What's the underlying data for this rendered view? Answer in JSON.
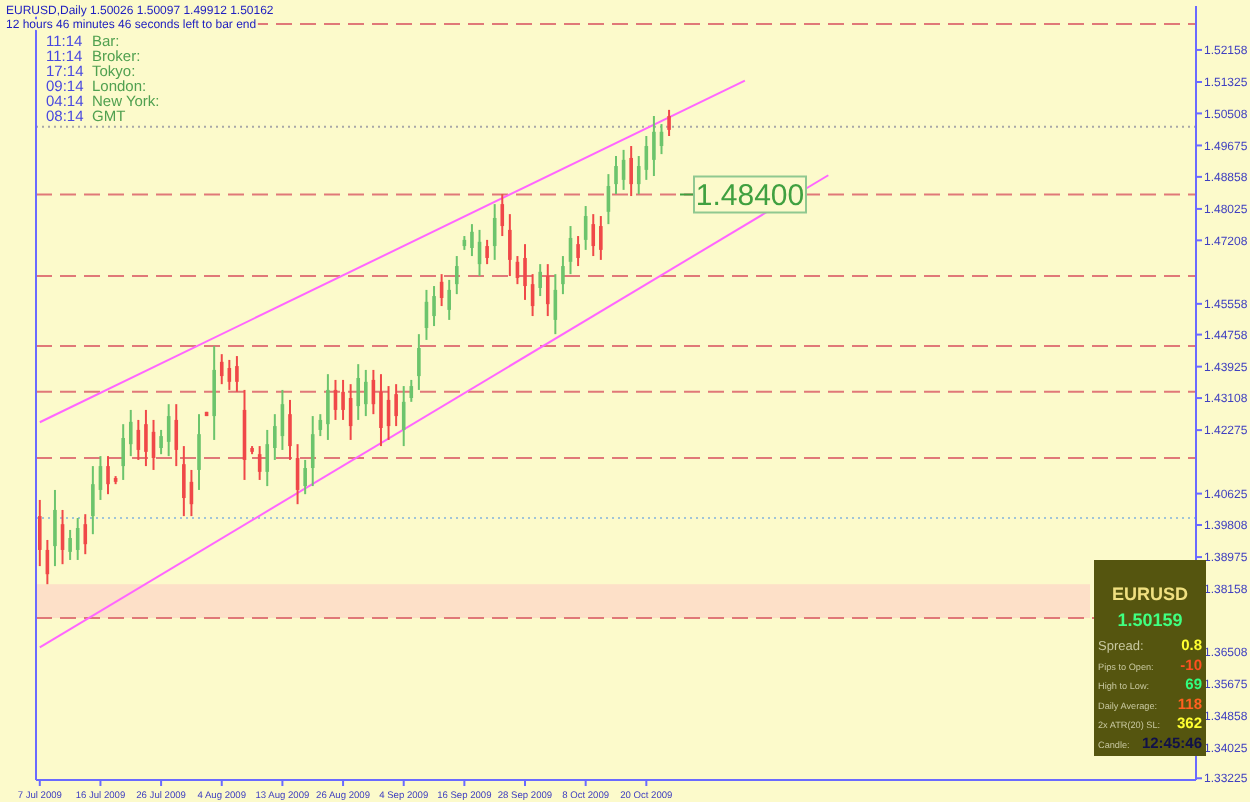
{
  "chart_data": {
    "type": "candlestick",
    "title": "EURUSD,Daily  1.50026 1.50097 1.49912 1.50162",
    "subtitle": "12 hours 46 minutes 46 seconds left to bar end",
    "categories": [
      "7 Jul 2009",
      null,
      null,
      null,
      null,
      null,
      null,
      null,
      "16 Jul 2009",
      null,
      null,
      null,
      null,
      null,
      null,
      null,
      "26 Jul 2009",
      null,
      null,
      null,
      null,
      null,
      null,
      null,
      "4 Aug 2009",
      null,
      null,
      null,
      null,
      null,
      null,
      null,
      "13 Aug 2009",
      null,
      null,
      null,
      null,
      null,
      null,
      null,
      "26 Aug 2009",
      null,
      null,
      null,
      null,
      null,
      null,
      null,
      "4 Sep 2009",
      null,
      null,
      null,
      null,
      null,
      null,
      null,
      "16 Sep 2009",
      null,
      null,
      null,
      null,
      null,
      null,
      null,
      "28 Sep 2009",
      null,
      null,
      null,
      null,
      null,
      null,
      null,
      "8 Oct 2009",
      null,
      null,
      null,
      null,
      null,
      null,
      null,
      "20 Oct 2009",
      null,
      null,
      null,
      null,
      null,
      null,
      null,
      null,
      null,
      null,
      null,
      null,
      null,
      null,
      null,
      null,
      null,
      null,
      null,
      null,
      null,
      null,
      null,
      null,
      null,
      null,
      null,
      null,
      null,
      null,
      null,
      null,
      null,
      null,
      null,
      null,
      null,
      null,
      null,
      null,
      null,
      null,
      null,
      null,
      null,
      null,
      null,
      null,
      null,
      null,
      null,
      null,
      null,
      null,
      null,
      null,
      null,
      null,
      null,
      null,
      null,
      null,
      null,
      null,
      null,
      null,
      null,
      null,
      null,
      null,
      null,
      null
    ],
    "ohlc": [
      [
        1.4004,
        1.4046,
        1.3874,
        1.3916
      ],
      [
        1.3916,
        1.3942,
        1.3827,
        1.3853
      ],
      [
        1.3926,
        1.4072,
        1.3874,
        1.402
      ],
      [
        1.3983,
        1.402,
        1.3879,
        1.3916
      ],
      [
        1.3911,
        1.3968,
        1.389,
        1.3947
      ],
      [
        1.3916,
        1.3999,
        1.389,
        1.3973
      ],
      [
        1.3983,
        1.4009,
        1.3905,
        1.3931
      ],
      [
        1.4004,
        1.4134,
        1.3957,
        1.4087
      ],
      [
        1.4072,
        1.416,
        1.4046,
        1.4134
      ],
      [
        1.4134,
        1.416,
        1.4061,
        1.4087
      ],
      [
        1.4103,
        1.4108,
        1.4087,
        1.4093
      ],
      [
        1.4134,
        1.4243,
        1.4098,
        1.4207
      ],
      [
        1.4191,
        1.428,
        1.416,
        1.4249
      ],
      [
        1.4228,
        1.4254,
        1.415,
        1.4176
      ],
      [
        1.4243,
        1.428,
        1.4134,
        1.4171
      ],
      [
        1.4223,
        1.4254,
        1.4124,
        1.4155
      ],
      [
        1.4181,
        1.4228,
        1.4165,
        1.4212
      ],
      [
        1.4197,
        1.4295,
        1.416,
        1.4264
      ],
      [
        1.4254,
        1.4295,
        1.4134,
        1.4176
      ],
      [
        1.4139,
        1.4186,
        1.4004,
        1.4051
      ],
      [
        1.4093,
        1.4124,
        1.4004,
        1.4035
      ],
      [
        1.4124,
        1.4269,
        1.4072,
        1.4217
      ],
      [
        1.4275,
        1.4275,
        1.4264,
        1.4264
      ],
      [
        1.4264,
        1.4446,
        1.4202,
        1.4384
      ],
      [
        1.4405,
        1.4425,
        1.4347,
        1.4368
      ],
      [
        1.4389,
        1.441,
        1.4332,
        1.4353
      ],
      [
        1.4394,
        1.442,
        1.4327,
        1.4353
      ],
      [
        1.428,
        1.4332,
        1.4098,
        1.415
      ],
      [
        1.4181,
        1.4186,
        1.4165,
        1.4171
      ],
      [
        1.4165,
        1.4186,
        1.4098,
        1.4119
      ],
      [
        1.4119,
        1.4228,
        1.4082,
        1.4191
      ],
      [
        1.4181,
        1.4269,
        1.415,
        1.4238
      ],
      [
        1.4212,
        1.4332,
        1.4176,
        1.4295
      ],
      [
        1.4269,
        1.4306,
        1.415,
        1.4186
      ],
      [
        1.4155,
        1.4191,
        1.4035,
        1.4072
      ],
      [
        1.4082,
        1.415,
        1.4061,
        1.4129
      ],
      [
        1.4129,
        1.4264,
        1.4082,
        1.4217
      ],
      [
        1.4228,
        1.4269,
        1.4212,
        1.4254
      ],
      [
        1.4243,
        1.4373,
        1.4202,
        1.4332
      ],
      [
        1.4332,
        1.4358,
        1.4254,
        1.428
      ],
      [
        1.4327,
        1.4358,
        1.4254,
        1.428
      ],
      [
        1.4311,
        1.4347,
        1.4202,
        1.4238
      ],
      [
        1.429,
        1.4399,
        1.4254,
        1.4363
      ],
      [
        1.4295,
        1.4384,
        1.4264,
        1.4353
      ],
      [
        1.4358,
        1.4384,
        1.4269,
        1.4295
      ],
      [
        1.4327,
        1.4373,
        1.4186,
        1.4233
      ],
      [
        1.4306,
        1.4342,
        1.4202,
        1.4238
      ],
      [
        1.4321,
        1.4347,
        1.4238,
        1.4264
      ],
      [
        1.4228,
        1.4342,
        1.4186,
        1.4301
      ],
      [
        1.4311,
        1.4358,
        1.4301,
        1.4342
      ],
      [
        1.4368,
        1.4477,
        1.4332,
        1.4441
      ],
      [
        1.4493,
        1.4592,
        1.4462,
        1.4561
      ],
      [
        1.4524,
        1.4602,
        1.4498,
        1.4576
      ],
      [
        1.4613,
        1.4633,
        1.455,
        1.4571
      ],
      [
        1.454,
        1.4618,
        1.4514,
        1.4592
      ],
      [
        1.4607,
        1.468,
        1.4581,
        1.4654
      ],
      [
        1.4706,
        1.4732,
        1.4696,
        1.4722
      ],
      [
        1.4701,
        1.4763,
        1.468,
        1.4743
      ],
      [
        1.4659,
        1.4748,
        1.4628,
        1.4717
      ],
      [
        1.4706,
        1.4722,
        1.4659,
        1.4675
      ],
      [
        1.4706,
        1.4815,
        1.467,
        1.4779
      ],
      [
        1.4815,
        1.4841,
        1.4732,
        1.4758
      ],
      [
        1.4748,
        1.4789,
        1.4628,
        1.467
      ],
      [
        1.4665,
        1.468,
        1.4607,
        1.4623
      ],
      [
        1.4675,
        1.4711,
        1.4566,
        1.4602
      ],
      [
        1.4607,
        1.4633,
        1.4524,
        1.455
      ],
      [
        1.4597,
        1.4659,
        1.4576,
        1.4639
      ],
      [
        1.4628,
        1.4659,
        1.4524,
        1.4555
      ],
      [
        1.4514,
        1.4633,
        1.4477,
        1.4592
      ],
      [
        1.4607,
        1.468,
        1.4581,
        1.4654
      ],
      [
        1.4665,
        1.4758,
        1.4633,
        1.4727
      ],
      [
        1.4711,
        1.4732,
        1.4654,
        1.4675
      ],
      [
        1.4722,
        1.481,
        1.4696,
        1.4784
      ],
      [
        1.4763,
        1.4789,
        1.468,
        1.4706
      ],
      [
        1.4758,
        1.4784,
        1.467,
        1.4696
      ],
      [
        1.4795,
        1.4893,
        1.4763,
        1.4862
      ],
      [
        1.4867,
        1.494,
        1.4841,
        1.4914
      ],
      [
        1.4878,
        1.4956,
        1.4852,
        1.493
      ],
      [
        1.4935,
        1.4966,
        1.4836,
        1.4867
      ],
      [
        1.4867,
        1.494,
        1.4841,
        1.4914
      ],
      [
        1.4904,
        1.4992,
        1.4878,
        1.4966
      ],
      [
        1.493,
        1.5044,
        1.4888,
        1.5003
      ],
      [
        1.4966,
        1.5023,
        1.4945,
        1.5003
      ],
      [
        1.5044,
        1.506,
        1.4992,
        1.5008
      ],
      null,
      null,
      null,
      null,
      null,
      null,
      null,
      null,
      null,
      null,
      null,
      null,
      null,
      null,
      null,
      null,
      null,
      null,
      null,
      null,
      null,
      null,
      null,
      null,
      null,
      null,
      null,
      null,
      null,
      null,
      null,
      null,
      null,
      null,
      null,
      null,
      null,
      null,
      null,
      null,
      null,
      null,
      null,
      null,
      null,
      null,
      null,
      null,
      null,
      null,
      null,
      null,
      null,
      null,
      null,
      null,
      null,
      null,
      null,
      null,
      null,
      null,
      null,
      null,
      null,
      null,
      null,
      null,
      null
    ],
    "colors": [
      "#f04848",
      "#f04848",
      "#6cc46c",
      "#f04848",
      "#6cc46c",
      "#6cc46c",
      "#f04848",
      "#6cc46c",
      "#6cc46c",
      "#f04848",
      "#f04848",
      "#6cc46c",
      "#6cc46c",
      "#f04848",
      "#f04848",
      "#f04848",
      "#6cc46c",
      "#6cc46c",
      "#f04848",
      "#f04848",
      "#f04848",
      "#6cc46c",
      "#f04848",
      "#6cc46c",
      "#f04848",
      "#f04848",
      "#f04848",
      "#f04848",
      "#f04848",
      "#f04848",
      "#6cc46c",
      "#6cc46c",
      "#6cc46c",
      "#f04848",
      "#f04848",
      "#6cc46c",
      "#6cc46c",
      "#6cc46c",
      "#6cc46c",
      "#f04848",
      "#f04848",
      "#f04848",
      "#6cc46c",
      "#6cc46c",
      "#f04848",
      "#f04848",
      "#f04848",
      "#f04848",
      "#6cc46c",
      "#6cc46c",
      "#6cc46c",
      "#6cc46c",
      "#6cc46c",
      "#f04848",
      "#6cc46c",
      "#6cc46c",
      "#6cc46c",
      "#6cc46c",
      "#6cc46c",
      "#f04848",
      "#6cc46c",
      "#f04848",
      "#f04848",
      "#f04848",
      "#f04848",
      "#f04848",
      "#6cc46c",
      "#f04848",
      "#6cc46c",
      "#6cc46c",
      "#6cc46c",
      "#f04848",
      "#6cc46c",
      "#f04848",
      "#f04848",
      "#6cc46c",
      "#6cc46c",
      "#6cc46c",
      "#f04848",
      "#6cc46c",
      "#6cc46c",
      "#6cc46c",
      "#6cc46c",
      "#f04848",
      null,
      null,
      null,
      null,
      null,
      null,
      null,
      null,
      null,
      null,
      null,
      null,
      null,
      null,
      null,
      null,
      null,
      null,
      null,
      null,
      null,
      null,
      null,
      null,
      null,
      null,
      null,
      null,
      null,
      null,
      null,
      null,
      null,
      null,
      null,
      null,
      null,
      null,
      null,
      null,
      null,
      null,
      null,
      null,
      null,
      null,
      null,
      null,
      null,
      null,
      null,
      null,
      null,
      null,
      null,
      null,
      null,
      null,
      null,
      null,
      null,
      null,
      null,
      null,
      null,
      null,
      null,
      null,
      null
    ],
    "series": [
      {
        "type": "line",
        "color": "#ff66ff",
        "values": [
          1.4248,
          null,
          null,
          null,
          null,
          null,
          null,
          null,
          null,
          null,
          null,
          null,
          null,
          null,
          null,
          null,
          null,
          null,
          null,
          null,
          null,
          null,
          null,
          null,
          null,
          null,
          null,
          null,
          null,
          null,
          null,
          null,
          null,
          null,
          null,
          null,
          null,
          null,
          null,
          null,
          null,
          null,
          null,
          null,
          null,
          null,
          null,
          null,
          null,
          null,
          null,
          null,
          null,
          null,
          null,
          null,
          null,
          null,
          null,
          null,
          null,
          null,
          null,
          null,
          null,
          null,
          null,
          null,
          null,
          null,
          null,
          null,
          null,
          null,
          null,
          null,
          null,
          null,
          null,
          null,
          null,
          null,
          null,
          null,
          null,
          null,
          null,
          null,
          null,
          null,
          null,
          null,
          null,
          1.5136,
          null,
          null,
          null,
          null,
          null,
          null,
          null,
          null,
          null,
          null,
          null,
          null,
          null,
          null,
          null,
          null,
          null,
          null,
          null,
          null,
          null,
          null,
          null,
          null,
          null,
          null,
          null,
          null,
          null,
          null,
          null,
          null,
          null,
          null,
          null,
          null,
          null,
          null,
          null,
          null,
          null,
          null,
          null,
          null,
          null,
          null,
          null,
          null,
          null,
          null,
          null,
          null,
          null,
          null,
          null,
          null,
          null,
          null,
          null
        ]
      },
      {
        "type": "line",
        "color": "#ff66ff",
        "values": [
          1.3663,
          null,
          null,
          null,
          null,
          null,
          null,
          null,
          null,
          null,
          null,
          null,
          null,
          null,
          null,
          null,
          null,
          null,
          null,
          null,
          null,
          null,
          null,
          null,
          null,
          null,
          null,
          null,
          null,
          null,
          null,
          null,
          null,
          null,
          null,
          null,
          null,
          null,
          null,
          null,
          null,
          null,
          null,
          null,
          null,
          null,
          null,
          null,
          null,
          null,
          null,
          null,
          null,
          null,
          null,
          null,
          null,
          null,
          null,
          null,
          null,
          null,
          null,
          null,
          null,
          null,
          null,
          null,
          null,
          null,
          null,
          null,
          null,
          null,
          null,
          null,
          null,
          null,
          null,
          null,
          null,
          null,
          null,
          null,
          null,
          null,
          null,
          null,
          null,
          null,
          null,
          null,
          null,
          null,
          null,
          null,
          null,
          null,
          null,
          null,
          null,
          null,
          null,
          null,
          1.489,
          null,
          null,
          null,
          null,
          null,
          null,
          null,
          null,
          null,
          null,
          null,
          null,
          null,
          null,
          null,
          null,
          null,
          null,
          null,
          null,
          null,
          null,
          null,
          null,
          null,
          null,
          null,
          null,
          null,
          null,
          null,
          null,
          null,
          null,
          null,
          null,
          null,
          null,
          null,
          null,
          null,
          null,
          null,
          null,
          null,
          null,
          null,
          null
        ]
      }
    ],
    "ylim": [
      1.3318,
      1.533
    ],
    "yticks": [
      1.52158,
      1.51325,
      1.50508,
      1.49675,
      1.48858,
      1.48025,
      1.47208,
      1.45558,
      1.44758,
      1.43925,
      1.43108,
      1.42275,
      1.40625,
      1.39808,
      1.38975,
      1.38158,
      1.36508,
      1.35675,
      1.34858,
      1.34025,
      1.33225
    ],
    "ref_lines": [
      {
        "axis": "y",
        "value": 1.5283,
        "color": "#e07878",
        "line_style": "dashed"
      },
      {
        "axis": "y",
        "value": 1.484,
        "color": "#e07878",
        "line_style": "dashed"
      },
      {
        "axis": "y",
        "value": 1.4628,
        "color": "#e07878",
        "line_style": "dashed"
      },
      {
        "axis": "y",
        "value": 1.4446,
        "color": "#e07878",
        "line_style": "dashed"
      },
      {
        "axis": "y",
        "value": 1.4327,
        "color": "#e07878",
        "line_style": "dashed"
      },
      {
        "axis": "y",
        "value": 1.4155,
        "color": "#e07878",
        "line_style": "dashed"
      },
      {
        "axis": "y",
        "value": 1.3739,
        "color": "#e07878",
        "line_style": "dashed"
      },
      {
        "axis": "y",
        "value": 1.5016,
        "color": "#a8a8a8",
        "line_style": "dotted"
      },
      {
        "axis": "y",
        "value": 1.3999,
        "color": "#a0c4d8",
        "line_style": "dotted"
      }
    ],
    "bands": [
      {
        "axis": "y",
        "from": 1.3739,
        "to": 1.3827,
        "color": "#fde0c8"
      }
    ],
    "annotations": [
      "11:14",
      "Bar:",
      "11:14",
      "Broker:",
      "17:14",
      "Tokyo:",
      "09:14",
      "London:",
      "04:14",
      "New York:",
      "08:14",
      "GMT",
      {
        "text": "1.48400",
        "y": 1.484
      },
      "EURUSD",
      "1.50159",
      "Spread:",
      "0.8",
      "Pips to Open:",
      "-10",
      "High to Low:",
      "69",
      "Daily Average:",
      "118",
      "2x ATR(20) SL:",
      "362",
      "Candle:",
      "12:45:46"
    ]
  }
}
